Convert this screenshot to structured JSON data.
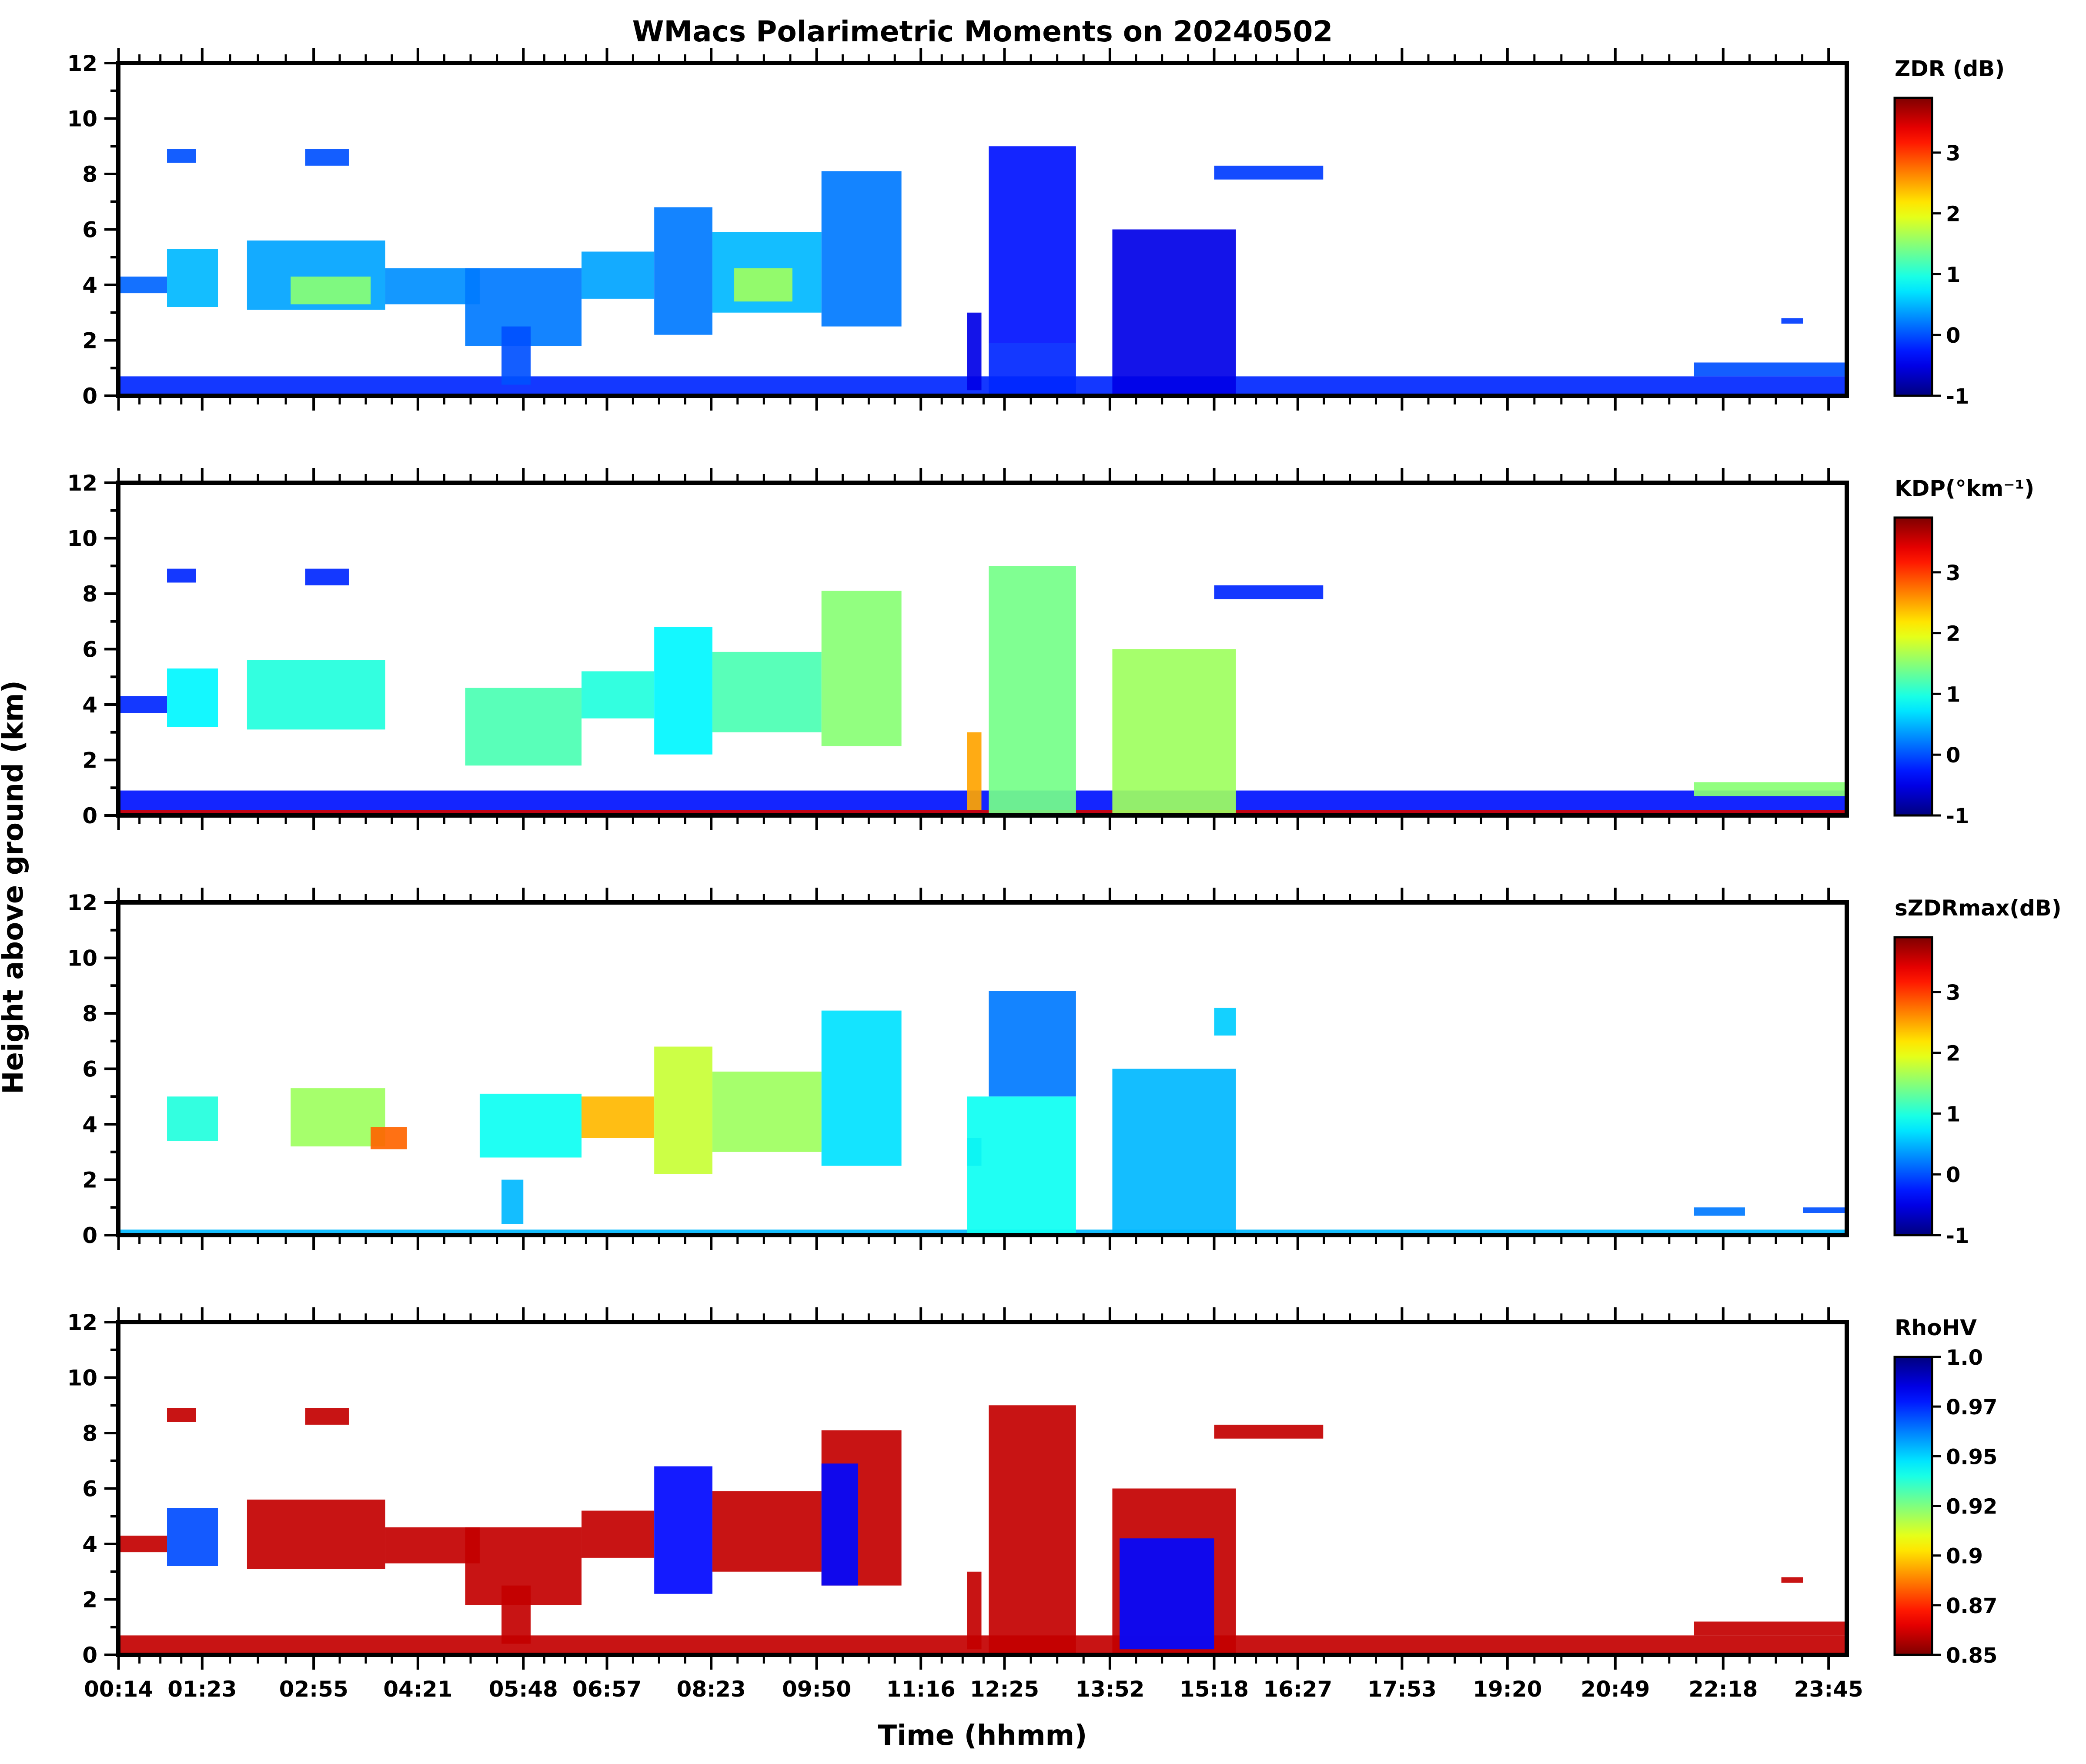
{
  "figure": {
    "title": "WMacs Polarimetric Moments on 20240502",
    "xlabel": "Time (hhmm)",
    "ylabel": "Height above ground (km)",
    "x_tick_labels": [
      "00:14",
      "01:23",
      "02:55",
      "04:21",
      "05:48",
      "06:57",
      "08:23",
      "09:50",
      "11:16",
      "12:25",
      "13:52",
      "15:18",
      "16:27",
      "17:53",
      "19:20",
      "20:49",
      "22:18",
      "23:45"
    ],
    "y_tick_labels": [
      "0",
      "2",
      "4",
      "6",
      "8",
      "10",
      "12"
    ]
  },
  "colormaps": {
    "jet": [
      "#00007f",
      "#0000ff",
      "#007fff",
      "#00ffff",
      "#7fff7f",
      "#ffff00",
      "#ff7f00",
      "#ff0000",
      "#7f0000"
    ]
  },
  "chart_data": [
    {
      "type": "heatmap",
      "colorbar_label": "ZDR (dB)",
      "colorbar_ticks": [
        "3",
        "2",
        "1",
        "0",
        "-1"
      ],
      "colorbar_range": [
        -1,
        3.9
      ],
      "colormap": "jet",
      "reversed": false,
      "ylim": [
        0,
        12
      ],
      "xlim": [
        0.23,
        24.0
      ],
      "x_unit": "hours UTC",
      "grid": false,
      "echo_regions": [
        {
          "t0": 0.23,
          "t1": 24.0,
          "h0": 0.0,
          "h1": 0.7,
          "value": -0.2
        },
        {
          "t0": 0.23,
          "t1": 0.9,
          "h0": 3.7,
          "h1": 4.3,
          "value": 0.1
        },
        {
          "t0": 0.9,
          "t1": 1.6,
          "h0": 3.2,
          "h1": 5.3,
          "value": 0.5
        },
        {
          "t0": 0.9,
          "t1": 1.3,
          "h0": 8.4,
          "h1": 8.9,
          "value": 0.0
        },
        {
          "t0": 2.0,
          "t1": 3.9,
          "h0": 3.1,
          "h1": 5.6,
          "value": 0.4
        },
        {
          "t0": 2.6,
          "t1": 3.7,
          "h0": 3.3,
          "h1": 4.3,
          "value": 1.5
        },
        {
          "t0": 2.8,
          "t1": 3.4,
          "h0": 8.3,
          "h1": 8.9,
          "value": 0.0
        },
        {
          "t0": 3.9,
          "t1": 5.2,
          "h0": 3.3,
          "h1": 4.6,
          "value": 0.3
        },
        {
          "t0": 5.0,
          "t1": 6.6,
          "h0": 1.8,
          "h1": 4.6,
          "value": 0.2
        },
        {
          "t0": 5.5,
          "t1": 5.9,
          "h0": 0.4,
          "h1": 2.5,
          "value": 0.0
        },
        {
          "t0": 6.6,
          "t1": 7.6,
          "h0": 3.5,
          "h1": 5.2,
          "value": 0.4
        },
        {
          "t0": 7.6,
          "t1": 8.4,
          "h0": 2.2,
          "h1": 6.8,
          "value": 0.2
        },
        {
          "t0": 8.4,
          "t1": 9.9,
          "h0": 3.0,
          "h1": 5.9,
          "value": 0.5
        },
        {
          "t0": 8.7,
          "t1": 9.5,
          "h0": 3.4,
          "h1": 4.6,
          "value": 1.6
        },
        {
          "t0": 9.9,
          "t1": 11.0,
          "h0": 2.5,
          "h1": 8.1,
          "value": 0.2
        },
        {
          "t0": 11.9,
          "t1": 12.1,
          "h0": 0.2,
          "h1": 3.0,
          "value": -0.5
        },
        {
          "t0": 12.2,
          "t1": 13.4,
          "h0": 1.9,
          "h1": 9.0,
          "value": -0.3
        },
        {
          "t0": 12.2,
          "t1": 13.4,
          "h0": 0.0,
          "h1": 1.9,
          "value": -0.2
        },
        {
          "t0": 13.9,
          "t1": 15.6,
          "h0": 0.0,
          "h1": 6.0,
          "value": -0.5
        },
        {
          "t0": 15.3,
          "t1": 16.8,
          "h0": 7.8,
          "h1": 8.3,
          "value": -0.1
        },
        {
          "t0": 21.9,
          "t1": 24.0,
          "h0": 0.7,
          "h1": 1.2,
          "value": 0.0
        },
        {
          "t0": 23.1,
          "t1": 23.4,
          "h0": 2.6,
          "h1": 2.8,
          "value": -0.1
        }
      ]
    },
    {
      "type": "heatmap",
      "colorbar_label": "KDP(°km⁻¹)",
      "colorbar_ticks": [
        "3",
        "2",
        "1",
        "0",
        "-1"
      ],
      "colorbar_range": [
        -1,
        3.9
      ],
      "colormap": "jet",
      "reversed": false,
      "ylim": [
        0,
        12
      ],
      "xlim": [
        0.23,
        24.0
      ],
      "x_unit": "hours UTC",
      "grid": false,
      "echo_regions": [
        {
          "t0": 0.23,
          "t1": 24.0,
          "h0": 0.0,
          "h1": 0.9,
          "value": -0.3
        },
        {
          "t0": 0.23,
          "t1": 24.0,
          "h0": 0.0,
          "h1": 0.2,
          "value": 3.5
        },
        {
          "t0": 0.23,
          "t1": 0.9,
          "h0": 3.7,
          "h1": 4.3,
          "value": -0.2
        },
        {
          "t0": 0.9,
          "t1": 1.6,
          "h0": 3.2,
          "h1": 5.3,
          "value": 0.8
        },
        {
          "t0": 0.9,
          "t1": 1.3,
          "h0": 8.4,
          "h1": 8.9,
          "value": -0.2
        },
        {
          "t0": 2.0,
          "t1": 3.9,
          "h0": 3.1,
          "h1": 5.6,
          "value": 1.0
        },
        {
          "t0": 2.8,
          "t1": 3.4,
          "h0": 8.3,
          "h1": 8.9,
          "value": -0.2
        },
        {
          "t0": 5.0,
          "t1": 6.6,
          "h0": 1.8,
          "h1": 4.6,
          "value": 1.2
        },
        {
          "t0": 6.6,
          "t1": 7.6,
          "h0": 3.5,
          "h1": 5.2,
          "value": 1.0
        },
        {
          "t0": 7.6,
          "t1": 8.4,
          "h0": 2.2,
          "h1": 6.8,
          "value": 0.8
        },
        {
          "t0": 8.4,
          "t1": 9.9,
          "h0": 3.0,
          "h1": 5.9,
          "value": 1.2
        },
        {
          "t0": 9.9,
          "t1": 11.0,
          "h0": 2.5,
          "h1": 8.1,
          "value": 1.5
        },
        {
          "t0": 11.9,
          "t1": 12.1,
          "h0": 0.2,
          "h1": 3.0,
          "value": 2.5
        },
        {
          "t0": 12.2,
          "t1": 13.4,
          "h0": 0.0,
          "h1": 9.0,
          "value": 1.4
        },
        {
          "t0": 13.9,
          "t1": 15.6,
          "h0": 0.0,
          "h1": 6.0,
          "value": 1.6
        },
        {
          "t0": 15.3,
          "t1": 16.8,
          "h0": 7.8,
          "h1": 8.3,
          "value": -0.2
        },
        {
          "t0": 21.9,
          "t1": 24.0,
          "h0": 0.7,
          "h1": 1.2,
          "value": 1.5
        }
      ]
    },
    {
      "type": "heatmap",
      "colorbar_label": "sZDRmax(dB)",
      "colorbar_ticks": [
        "3",
        "2",
        "1",
        "0",
        "-1"
      ],
      "colorbar_range": [
        -1,
        3.9
      ],
      "colormap": "jet",
      "reversed": false,
      "ylim": [
        0,
        12
      ],
      "xlim": [
        0.23,
        24.0
      ],
      "x_unit": "hours UTC",
      "grid": false,
      "echo_regions": [
        {
          "t0": 0.23,
          "t1": 24.0,
          "h0": 0.0,
          "h1": 0.2,
          "value": 0.5
        },
        {
          "t0": 0.9,
          "t1": 1.6,
          "h0": 3.4,
          "h1": 5.0,
          "value": 1.0
        },
        {
          "t0": 2.6,
          "t1": 3.9,
          "h0": 3.2,
          "h1": 5.3,
          "value": 1.6
        },
        {
          "t0": 3.7,
          "t1": 4.2,
          "h0": 3.1,
          "h1": 3.9,
          "value": 2.8
        },
        {
          "t0": 5.2,
          "t1": 6.6,
          "h0": 2.8,
          "h1": 5.1,
          "value": 0.9
        },
        {
          "t0": 5.5,
          "t1": 5.8,
          "h0": 0.4,
          "h1": 2.0,
          "value": 0.5
        },
        {
          "t0": 6.6,
          "t1": 7.6,
          "h0": 3.5,
          "h1": 5.0,
          "value": 2.4
        },
        {
          "t0": 7.6,
          "t1": 8.4,
          "h0": 2.2,
          "h1": 6.8,
          "value": 1.8
        },
        {
          "t0": 8.4,
          "t1": 9.9,
          "h0": 3.0,
          "h1": 5.9,
          "value": 1.6
        },
        {
          "t0": 9.9,
          "t1": 11.0,
          "h0": 2.5,
          "h1": 8.1,
          "value": 0.7
        },
        {
          "t0": 11.9,
          "t1": 12.1,
          "h0": 2.5,
          "h1": 3.5,
          "value": 0.2
        },
        {
          "t0": 12.2,
          "t1": 13.4,
          "h0": 5.0,
          "h1": 8.8,
          "value": 0.2
        },
        {
          "t0": 11.9,
          "t1": 13.4,
          "h0": 0.0,
          "h1": 5.0,
          "value": 0.9
        },
        {
          "t0": 13.9,
          "t1": 15.6,
          "h0": 0.0,
          "h1": 6.0,
          "value": 0.5
        },
        {
          "t0": 15.3,
          "t1": 15.6,
          "h0": 7.2,
          "h1": 8.2,
          "value": 0.6
        },
        {
          "t0": 21.9,
          "t1": 22.6,
          "h0": 0.7,
          "h1": 1.0,
          "value": 0.2
        },
        {
          "t0": 23.4,
          "t1": 24.0,
          "h0": 0.8,
          "h1": 1.0,
          "value": 0.0
        }
      ]
    },
    {
      "type": "heatmap",
      "colorbar_label": "RhoHV",
      "colorbar_ticks": [
        "1.0",
        "0.97",
        "0.95",
        "0.92",
        "0.9",
        "0.87",
        "0.85"
      ],
      "colorbar_range": [
        0.85,
        1.0
      ],
      "colormap": "jet",
      "reversed": true,
      "ylim": [
        0,
        12
      ],
      "xlim": [
        0.23,
        24.0
      ],
      "x_unit": "hours UTC",
      "grid": false,
      "echo_regions": [
        {
          "t0": 0.23,
          "t1": 24.0,
          "h0": 0.0,
          "h1": 0.7,
          "value": 0.86
        },
        {
          "t0": 0.23,
          "t1": 0.9,
          "h0": 3.7,
          "h1": 4.3,
          "value": 0.86
        },
        {
          "t0": 0.9,
          "t1": 1.6,
          "h0": 3.2,
          "h1": 5.3,
          "value": 0.97
        },
        {
          "t0": 0.9,
          "t1": 1.3,
          "h0": 8.4,
          "h1": 8.9,
          "value": 0.86
        },
        {
          "t0": 2.0,
          "t1": 3.9,
          "h0": 3.1,
          "h1": 5.6,
          "value": 0.86
        },
        {
          "t0": 2.8,
          "t1": 3.4,
          "h0": 8.3,
          "h1": 8.9,
          "value": 0.86
        },
        {
          "t0": 3.9,
          "t1": 5.2,
          "h0": 3.3,
          "h1": 4.6,
          "value": 0.86
        },
        {
          "t0": 5.0,
          "t1": 6.6,
          "h0": 1.8,
          "h1": 4.6,
          "value": 0.86
        },
        {
          "t0": 5.5,
          "t1": 5.9,
          "h0": 0.4,
          "h1": 2.5,
          "value": 0.86
        },
        {
          "t0": 6.6,
          "t1": 7.6,
          "h0": 3.5,
          "h1": 5.2,
          "value": 0.86
        },
        {
          "t0": 7.6,
          "t1": 8.4,
          "h0": 2.2,
          "h1": 6.8,
          "value": 0.98
        },
        {
          "t0": 8.4,
          "t1": 9.9,
          "h0": 3.0,
          "h1": 5.9,
          "value": 0.86
        },
        {
          "t0": 9.9,
          "t1": 11.0,
          "h0": 2.5,
          "h1": 8.1,
          "value": 0.86
        },
        {
          "t0": 9.9,
          "t1": 10.4,
          "h0": 2.5,
          "h1": 6.9,
          "value": 0.98
        },
        {
          "t0": 11.9,
          "t1": 12.1,
          "h0": 0.2,
          "h1": 3.0,
          "value": 0.86
        },
        {
          "t0": 12.2,
          "t1": 13.4,
          "h0": 0.0,
          "h1": 9.0,
          "value": 0.86
        },
        {
          "t0": 13.9,
          "t1": 15.6,
          "h0": 0.0,
          "h1": 6.0,
          "value": 0.86
        },
        {
          "t0": 14.0,
          "t1": 15.3,
          "h0": 0.2,
          "h1": 4.2,
          "value": 0.98
        },
        {
          "t0": 15.3,
          "t1": 16.8,
          "h0": 7.8,
          "h1": 8.3,
          "value": 0.86
        },
        {
          "t0": 21.9,
          "t1": 24.0,
          "h0": 0.7,
          "h1": 1.2,
          "value": 0.86
        },
        {
          "t0": 23.1,
          "t1": 23.4,
          "h0": 2.6,
          "h1": 2.8,
          "value": 0.86
        }
      ]
    }
  ]
}
